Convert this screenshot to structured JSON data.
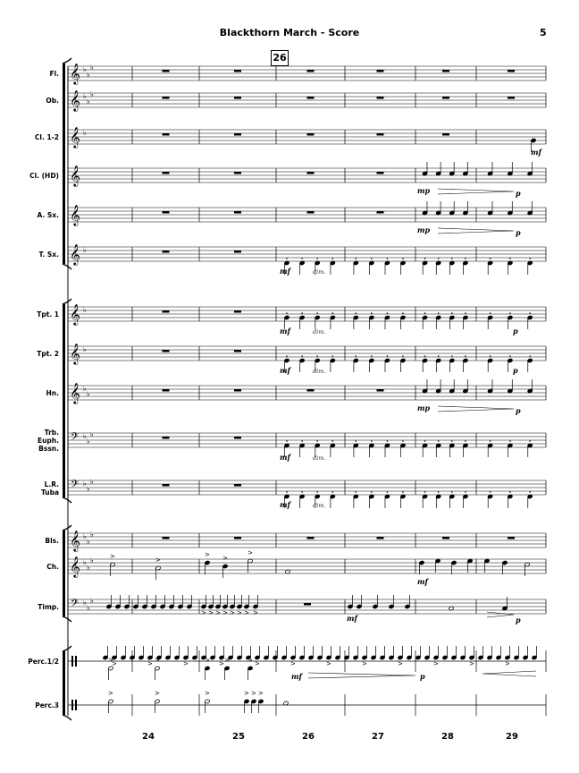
{
  "header": {
    "title": "Blackthorn March - Score",
    "page_number": "5",
    "rehearsal_mark": "26"
  },
  "instruments": [
    {
      "name": "Fl.",
      "clef": "treble",
      "key": "Eb"
    },
    {
      "name": "Ob.",
      "clef": "treble",
      "key": "Eb"
    },
    {
      "name": "Cl. 1-2",
      "clef": "treble",
      "key": "F"
    },
    {
      "name": "Cl. (HD)",
      "clef": "treble",
      "key": "C"
    },
    {
      "name": "A. Sx.",
      "clef": "treble",
      "key": "C"
    },
    {
      "name": "T. Sx.",
      "clef": "treble",
      "key": "F"
    },
    {
      "name": "Tpt. 1",
      "clef": "treble",
      "key": "F"
    },
    {
      "name": "Tpt. 2",
      "clef": "treble",
      "key": "F"
    },
    {
      "name": "Hn.",
      "clef": "treble",
      "key": "Bb"
    },
    {
      "name": "Trb.\nEuph.\nBssn.",
      "clef": "bass",
      "key": "Eb"
    },
    {
      "name": "L.R.\nTuba",
      "clef": "bass",
      "key": "Eb"
    },
    {
      "name": "Bls.",
      "clef": "treble",
      "key": "Eb"
    },
    {
      "name": "Ch.",
      "clef": "treble",
      "key": "Eb"
    },
    {
      "name": "Timp.",
      "clef": "bass",
      "key": "Eb"
    },
    {
      "name": "Perc.1/2",
      "clef": "perc",
      "key": ""
    },
    {
      "name": "Perc.3",
      "clef": "perc",
      "key": ""
    }
  ],
  "measure_numbers": [
    "24",
    "25",
    "26",
    "27",
    "28",
    "29"
  ],
  "dynamics": {
    "mf": "mf",
    "mp": "mp",
    "p": "p",
    "dim": "dim."
  }
}
